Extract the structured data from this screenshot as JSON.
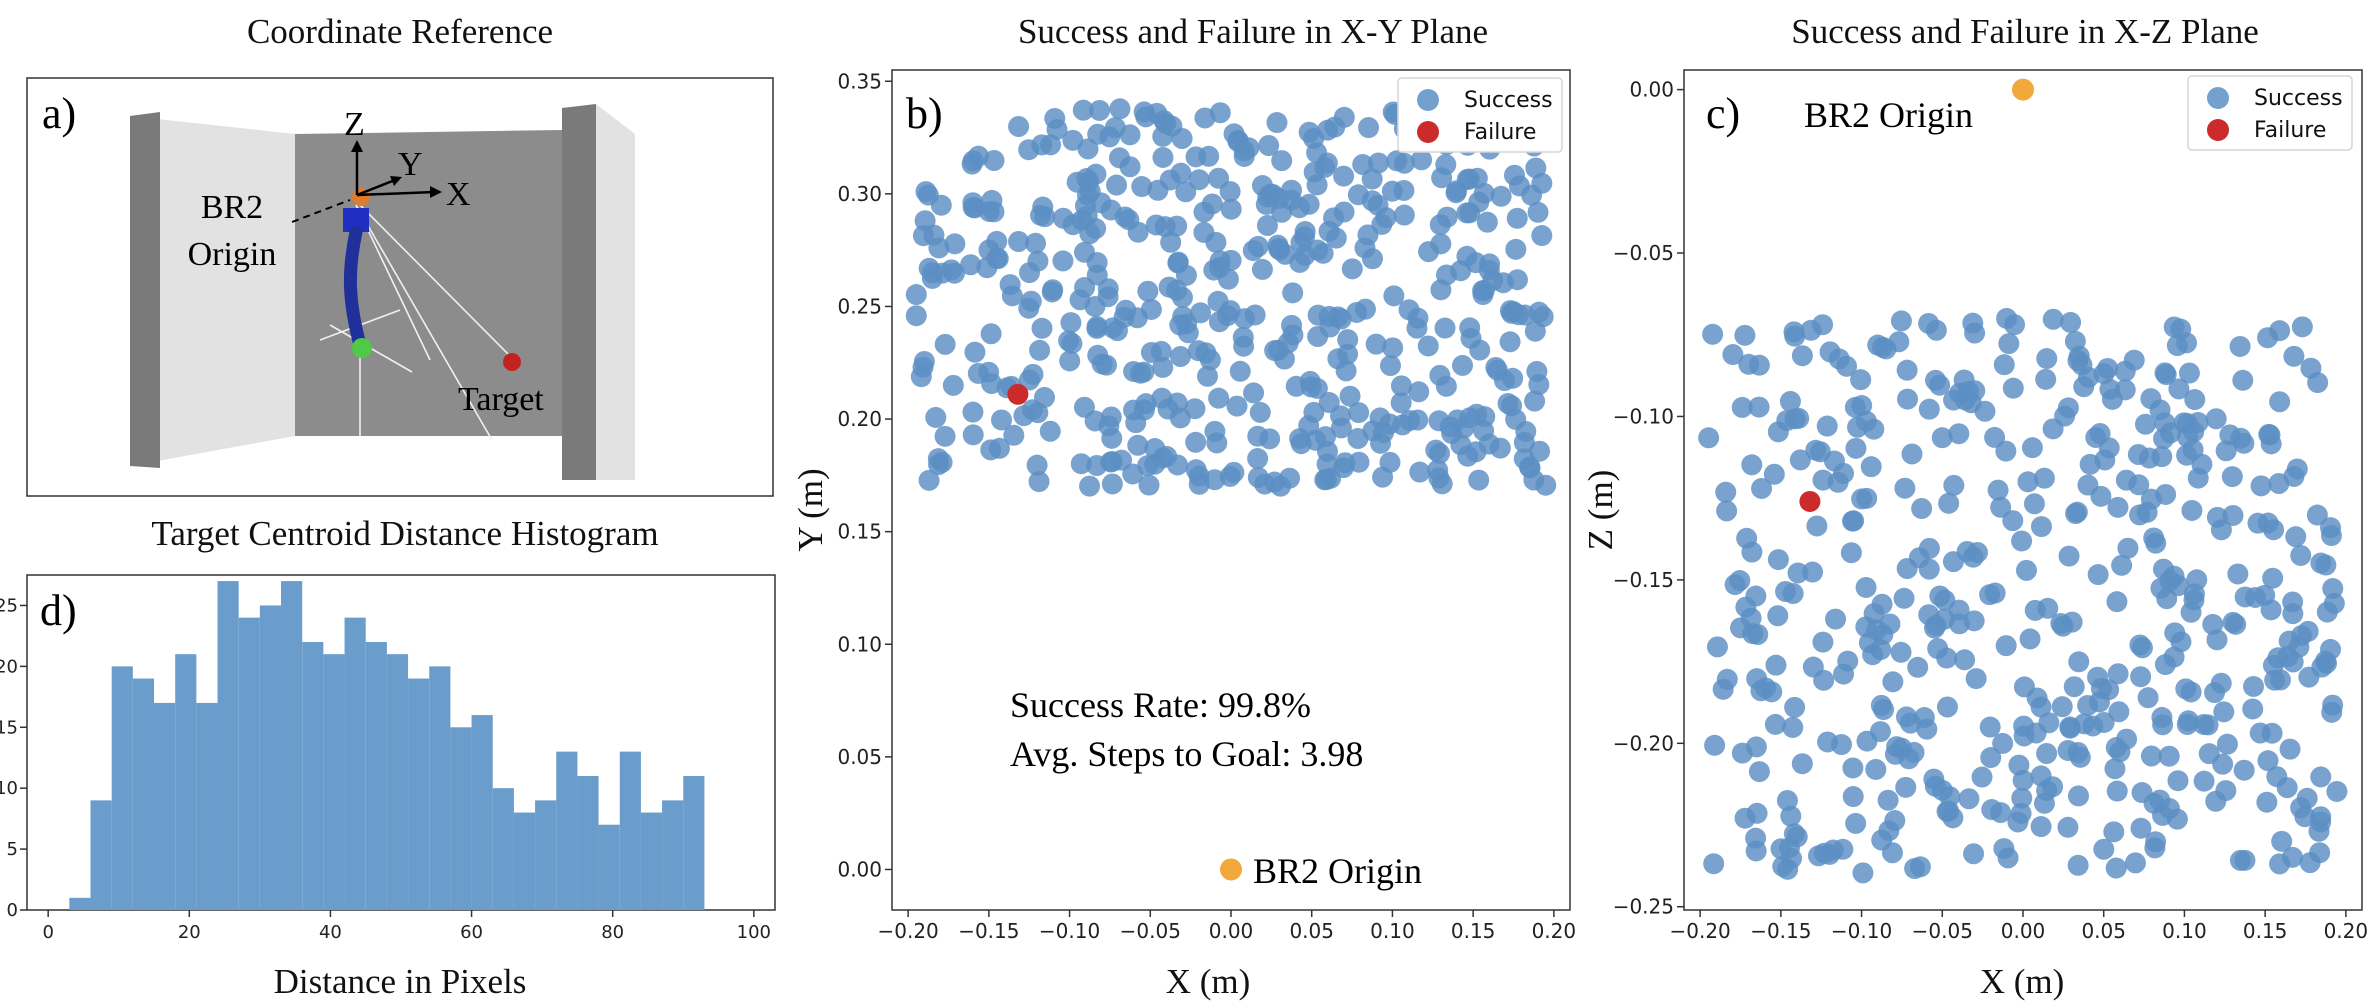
{
  "panels": {
    "a": {
      "title": "Coordinate Reference",
      "letter": "a)",
      "labels": {
        "z": "Z",
        "y": "Y",
        "x": "X",
        "origin_line1": "BR2",
        "origin_line2": "Origin",
        "target": "Target"
      }
    },
    "b": {
      "title": "Success and Failure in X-Y Plane",
      "letter": "b)",
      "success_rate": "Success Rate: 99.8%",
      "avg_steps": "Avg. Steps to Goal: 3.98",
      "origin_label": "BR2 Origin"
    },
    "c": {
      "title": "Success and Failure in X-Z Plane",
      "letter": "c)",
      "origin_label": "BR2 Origin"
    },
    "d": {
      "title": "Target Centroid Distance Histogram",
      "letter": "d)"
    }
  },
  "colors": {
    "success": "#5b8fc3",
    "failure": "#cc2b2b",
    "origin": "#f2a93b",
    "histogram": "#6a9dcb",
    "wall_dark": "#8c8c8c",
    "wall_light": "#e2e2e2",
    "wall_pillar": "#7a7a7a"
  },
  "chart_data": [
    {
      "id": "hist",
      "type": "bar",
      "xlabel": "Distance in Pixels",
      "ylabel": "",
      "xlim": [
        -3,
        103
      ],
      "ylim": [
        0,
        27.5
      ],
      "xticks": [
        0,
        20,
        40,
        60,
        80,
        100
      ],
      "yticks": [
        0,
        5,
        10,
        15,
        20,
        25
      ],
      "bin_start": 3,
      "bin_width": 3,
      "values": [
        1,
        9,
        20,
        19,
        17,
        21,
        17,
        27,
        24,
        25,
        27,
        22,
        21,
        24,
        22,
        21,
        19,
        20,
        15,
        16,
        10,
        8,
        9,
        13,
        11,
        7,
        13,
        8,
        9,
        11
      ]
    },
    {
      "id": "xy",
      "type": "scatter",
      "xlabel": "X (m)",
      "ylabel": "Y (m)",
      "xlim": [
        -0.21,
        0.21
      ],
      "ylim": [
        -0.018,
        0.355
      ],
      "xticks": [
        -0.2,
        -0.15,
        -0.1,
        -0.05,
        0.0,
        0.05,
        0.1,
        0.15,
        0.2
      ],
      "yticks": [
        0.0,
        0.05,
        0.1,
        0.15,
        0.2,
        0.25,
        0.3,
        0.35
      ],
      "legend": {
        "position": "upper right",
        "entries": [
          "Success",
          "Failure"
        ]
      },
      "series": [
        {
          "name": "Success",
          "sample_count": 499,
          "x_range": [
            -0.195,
            0.195
          ],
          "y_range": [
            0.17,
            0.338
          ]
        },
        {
          "name": "Failure",
          "points": [
            [
              -0.132,
              0.211
            ]
          ]
        }
      ],
      "origin_point": [
        0.0,
        0.0
      ]
    },
    {
      "id": "xz",
      "type": "scatter",
      "xlabel": "X (m)",
      "ylabel": "Z (m)",
      "xlim": [
        -0.21,
        0.21
      ],
      "ylim": [
        -0.251,
        0.006
      ],
      "xticks": [
        -0.2,
        -0.15,
        -0.1,
        -0.05,
        0.0,
        0.05,
        0.1,
        0.15,
        0.2
      ],
      "yticks": [
        0.0,
        -0.05,
        -0.1,
        -0.15,
        -0.2,
        -0.25
      ],
      "legend": {
        "position": "upper right",
        "entries": [
          "Success",
          "Failure"
        ]
      },
      "series": [
        {
          "name": "Success",
          "sample_count": 499,
          "x_range": [
            -0.195,
            0.195
          ],
          "z_range": [
            -0.24,
            -0.07
          ]
        },
        {
          "name": "Failure",
          "points": [
            [
              -0.132,
              -0.126
            ]
          ]
        }
      ],
      "origin_point": [
        0.0,
        0.0
      ]
    }
  ]
}
